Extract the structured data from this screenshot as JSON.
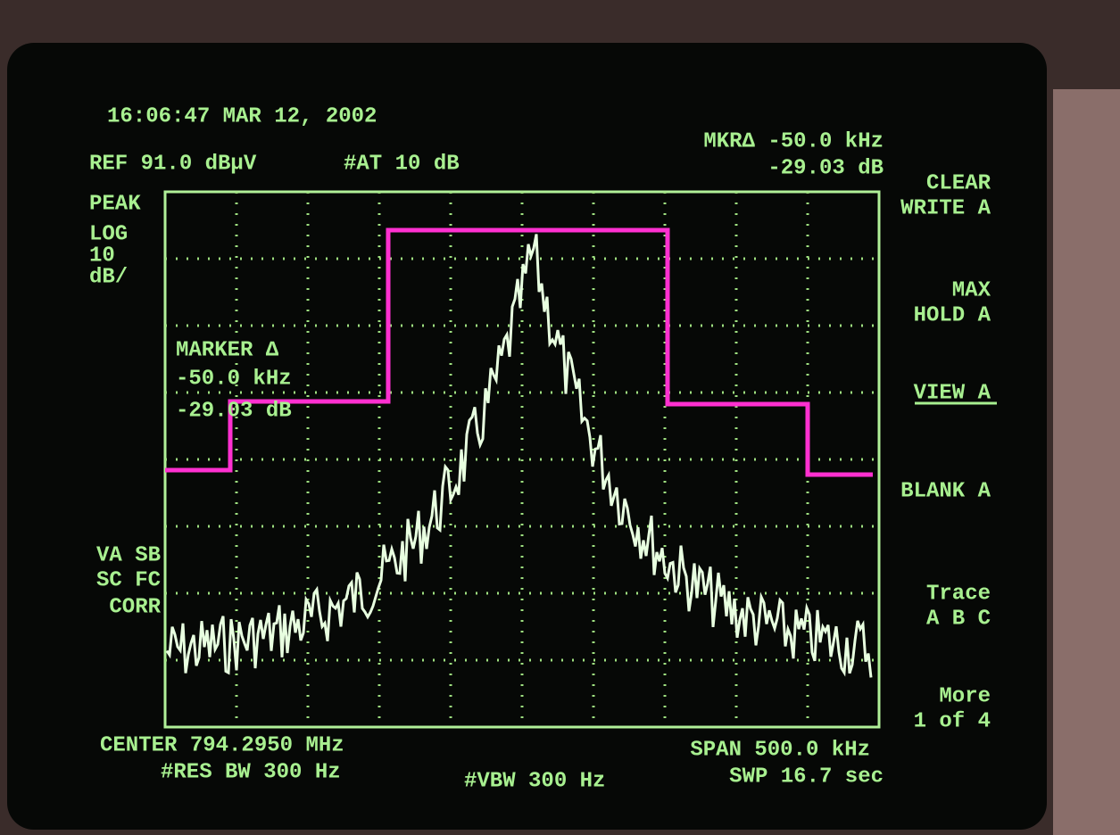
{
  "header": {
    "timestamp": "16:06:47 MAR 12, 2002",
    "ref_level": "REF 91.0 dBµV",
    "attenuation": "#AT 10 dB",
    "marker_readout": {
      "frequency": "MKR∆ -50.0 kHz",
      "amplitude": "-29.03 dB"
    }
  },
  "left_panel": {
    "detector": "PEAK",
    "scale": [
      "LOG",
      "10",
      "dB/"
    ],
    "status": [
      "VA SB",
      "SC FC",
      "CORR"
    ]
  },
  "marker_box": {
    "title": "MARKER ∆",
    "frequency": "-50.0 kHz",
    "amplitude": "-29.03 dB"
  },
  "footer": {
    "center": "CENTER 794.2950 MHz",
    "res_bw": "#RES BW 300 Hz",
    "vbw": "#VBW 300 Hz",
    "span": "SPAN 500.0 kHz",
    "sweep": "SWP 16.7 sec"
  },
  "softkeys": [
    [
      "CLEAR",
      "WRITE A"
    ],
    [
      "MAX",
      "HOLD A"
    ],
    [
      "VIEW A"
    ],
    [
      "BLANK A"
    ],
    [
      "Trace",
      "A B C"
    ],
    [
      "More",
      "1 of 4"
    ]
  ]
}
